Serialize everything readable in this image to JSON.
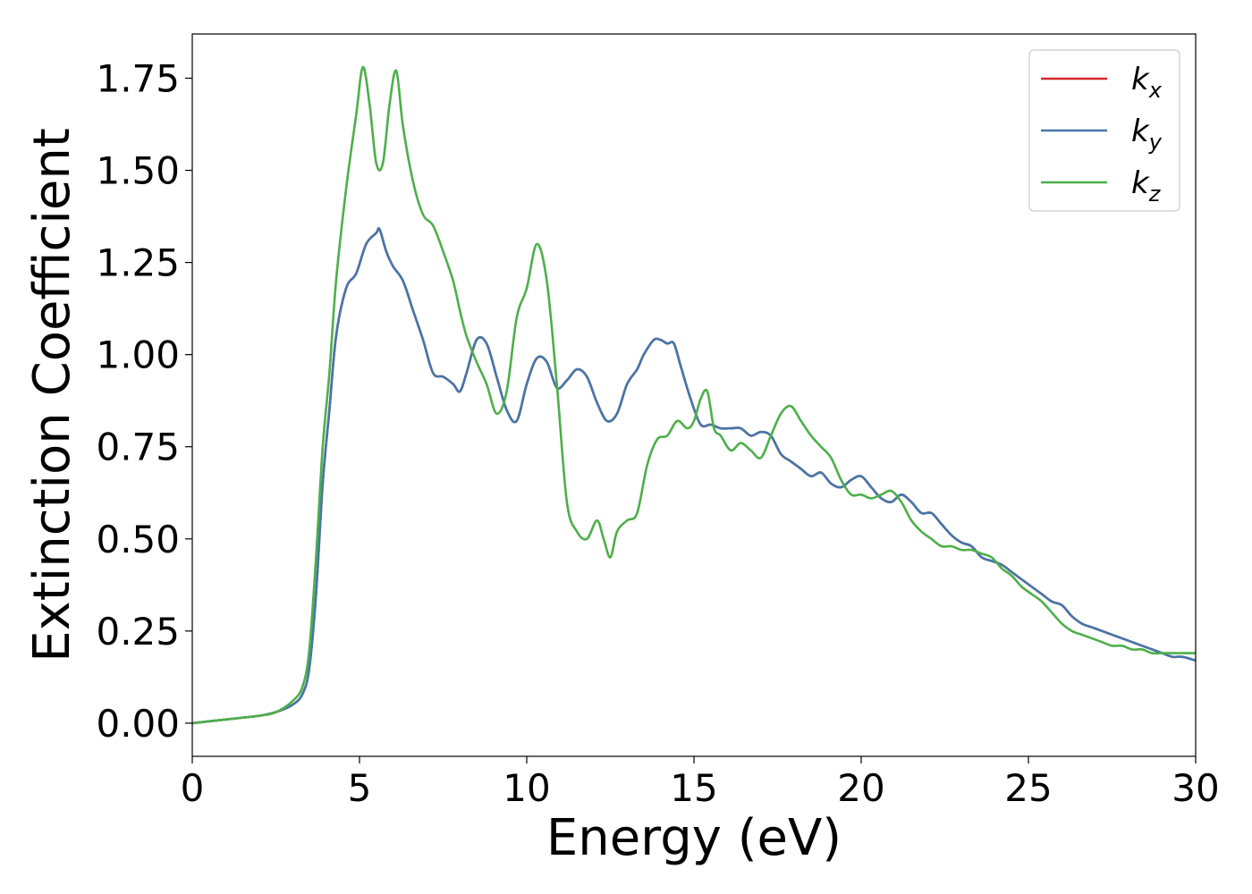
{
  "chart_data": {
    "type": "line",
    "xlabel": "Energy (eV)",
    "ylabel": "Extinction Coefficient",
    "xlim": [
      0,
      30
    ],
    "ylim": [
      -0.09,
      1.87
    ],
    "xticks": [
      0,
      5,
      10,
      15,
      20,
      25,
      30
    ],
    "xtick_labels": [
      "0",
      "5",
      "10",
      "15",
      "20",
      "25",
      "30"
    ],
    "yticks": [
      0.0,
      0.25,
      0.5,
      0.75,
      1.0,
      1.25,
      1.5,
      1.75
    ],
    "ytick_labels": [
      "0.00",
      "0.25",
      "0.50",
      "0.75",
      "1.00",
      "1.25",
      "1.50",
      "1.75"
    ],
    "grid": false,
    "legend_position": "top-right",
    "series": [
      {
        "name": "k_x",
        "label_base": "k",
        "label_sub": "x",
        "color": "#d62728",
        "x": [
          0,
          1,
          2,
          2.5,
          3,
          3.3,
          3.5,
          3.7,
          3.9,
          4.1,
          4.3,
          4.6,
          4.9,
          5.2,
          5.5,
          5.6,
          5.8,
          6.0,
          6.3,
          6.6,
          6.9,
          7.2,
          7.5,
          7.8,
          8.0,
          8.2,
          8.5,
          8.8,
          9.1,
          9.4,
          9.7,
          10.0,
          10.3,
          10.6,
          10.9,
          11.2,
          11.5,
          11.8,
          12.1,
          12.4,
          12.7,
          13.0,
          13.3,
          13.5,
          13.8,
          14.0,
          14.2,
          14.4,
          14.6,
          14.9,
          15.2,
          15.5,
          15.8,
          16.1,
          16.4,
          16.7,
          17.0,
          17.3,
          17.6,
          17.9,
          18.2,
          18.5,
          18.8,
          19.1,
          19.4,
          19.7,
          20.0,
          20.3,
          20.6,
          20.9,
          21.2,
          21.5,
          21.8,
          22.1,
          22.4,
          22.7,
          23.0,
          23.3,
          23.6,
          23.9,
          24.2,
          24.5,
          24.8,
          25.1,
          25.4,
          25.7,
          26.0,
          26.3,
          26.6,
          26.9,
          27.2,
          27.5,
          27.8,
          28.1,
          28.4,
          28.7,
          29.0,
          29.3,
          29.6,
          30.0
        ],
        "y": [
          0.0,
          0.01,
          0.02,
          0.03,
          0.05,
          0.08,
          0.15,
          0.35,
          0.65,
          0.85,
          1.05,
          1.18,
          1.22,
          1.3,
          1.33,
          1.34,
          1.28,
          1.24,
          1.2,
          1.12,
          1.04,
          0.95,
          0.94,
          0.92,
          0.9,
          0.95,
          1.04,
          1.03,
          0.94,
          0.85,
          0.82,
          0.92,
          0.99,
          0.98,
          0.91,
          0.93,
          0.96,
          0.94,
          0.87,
          0.82,
          0.84,
          0.92,
          0.96,
          1.0,
          1.04,
          1.04,
          1.03,
          1.03,
          0.97,
          0.88,
          0.81,
          0.81,
          0.8,
          0.8,
          0.8,
          0.78,
          0.79,
          0.78,
          0.73,
          0.71,
          0.69,
          0.67,
          0.68,
          0.65,
          0.64,
          0.66,
          0.67,
          0.64,
          0.61,
          0.6,
          0.62,
          0.6,
          0.57,
          0.57,
          0.54,
          0.51,
          0.49,
          0.48,
          0.45,
          0.44,
          0.43,
          0.41,
          0.39,
          0.37,
          0.35,
          0.33,
          0.32,
          0.29,
          0.27,
          0.26,
          0.25,
          0.24,
          0.23,
          0.22,
          0.21,
          0.2,
          0.19,
          0.18,
          0.18,
          0.17
        ]
      },
      {
        "name": "k_y",
        "label_base": "k",
        "label_sub": "y",
        "color": "#4477aa",
        "x": [
          0,
          1,
          2,
          2.5,
          3,
          3.3,
          3.5,
          3.7,
          3.9,
          4.1,
          4.3,
          4.6,
          4.9,
          5.2,
          5.5,
          5.6,
          5.8,
          6.0,
          6.3,
          6.6,
          6.9,
          7.2,
          7.5,
          7.8,
          8.0,
          8.2,
          8.5,
          8.8,
          9.1,
          9.4,
          9.7,
          10.0,
          10.3,
          10.6,
          10.9,
          11.2,
          11.5,
          11.8,
          12.1,
          12.4,
          12.7,
          13.0,
          13.3,
          13.5,
          13.8,
          14.0,
          14.2,
          14.4,
          14.6,
          14.9,
          15.2,
          15.5,
          15.8,
          16.1,
          16.4,
          16.7,
          17.0,
          17.3,
          17.6,
          17.9,
          18.2,
          18.5,
          18.8,
          19.1,
          19.4,
          19.7,
          20.0,
          20.3,
          20.6,
          20.9,
          21.2,
          21.5,
          21.8,
          22.1,
          22.4,
          22.7,
          23.0,
          23.3,
          23.6,
          23.9,
          24.2,
          24.5,
          24.8,
          25.1,
          25.4,
          25.7,
          26.0,
          26.3,
          26.6,
          26.9,
          27.2,
          27.5,
          27.8,
          28.1,
          28.4,
          28.7,
          29.0,
          29.3,
          29.6,
          30.0
        ],
        "y": [
          0.0,
          0.01,
          0.02,
          0.03,
          0.05,
          0.08,
          0.15,
          0.35,
          0.65,
          0.85,
          1.05,
          1.18,
          1.22,
          1.3,
          1.33,
          1.34,
          1.28,
          1.24,
          1.2,
          1.12,
          1.04,
          0.95,
          0.94,
          0.92,
          0.9,
          0.95,
          1.04,
          1.03,
          0.94,
          0.85,
          0.82,
          0.92,
          0.99,
          0.98,
          0.91,
          0.93,
          0.96,
          0.94,
          0.87,
          0.82,
          0.84,
          0.92,
          0.96,
          1.0,
          1.04,
          1.04,
          1.03,
          1.03,
          0.97,
          0.88,
          0.81,
          0.81,
          0.8,
          0.8,
          0.8,
          0.78,
          0.79,
          0.78,
          0.73,
          0.71,
          0.69,
          0.67,
          0.68,
          0.65,
          0.64,
          0.66,
          0.67,
          0.64,
          0.61,
          0.6,
          0.62,
          0.6,
          0.57,
          0.57,
          0.54,
          0.51,
          0.49,
          0.48,
          0.45,
          0.44,
          0.43,
          0.41,
          0.39,
          0.37,
          0.35,
          0.33,
          0.32,
          0.29,
          0.27,
          0.26,
          0.25,
          0.24,
          0.23,
          0.22,
          0.21,
          0.2,
          0.19,
          0.18,
          0.18,
          0.17
        ]
      },
      {
        "name": "k_z",
        "label_base": "k",
        "label_sub": "z",
        "color": "#4daf4a",
        "x": [
          0,
          1,
          2,
          2.5,
          3,
          3.3,
          3.5,
          3.7,
          3.9,
          4.1,
          4.3,
          4.6,
          4.9,
          5.1,
          5.3,
          5.5,
          5.7,
          5.9,
          6.1,
          6.3,
          6.6,
          6.9,
          7.2,
          7.5,
          7.8,
          8.0,
          8.2,
          8.5,
          8.8,
          9.1,
          9.4,
          9.7,
          10.0,
          10.3,
          10.6,
          10.9,
          11.2,
          11.5,
          11.8,
          12.1,
          12.3,
          12.5,
          12.7,
          13.0,
          13.3,
          13.6,
          13.9,
          14.2,
          14.5,
          14.8,
          15.0,
          15.2,
          15.4,
          15.6,
          15.8,
          16.1,
          16.4,
          16.7,
          17.0,
          17.3,
          17.6,
          17.9,
          18.2,
          18.5,
          18.8,
          19.1,
          19.4,
          19.7,
          20.0,
          20.3,
          20.6,
          20.9,
          21.2,
          21.5,
          21.8,
          22.1,
          22.4,
          22.7,
          23.0,
          23.3,
          23.6,
          23.9,
          24.2,
          24.5,
          24.8,
          25.1,
          25.4,
          25.7,
          26.0,
          26.3,
          26.6,
          26.9,
          27.2,
          27.5,
          27.8,
          28.1,
          28.4,
          28.7,
          29.0,
          29.3,
          29.6,
          30.0
        ],
        "y": [
          0.0,
          0.01,
          0.02,
          0.03,
          0.06,
          0.1,
          0.2,
          0.45,
          0.75,
          0.95,
          1.2,
          1.45,
          1.65,
          1.78,
          1.68,
          1.52,
          1.52,
          1.68,
          1.77,
          1.62,
          1.47,
          1.38,
          1.35,
          1.28,
          1.2,
          1.12,
          1.05,
          0.98,
          0.92,
          0.84,
          0.9,
          1.1,
          1.18,
          1.3,
          1.2,
          0.92,
          0.6,
          0.52,
          0.5,
          0.55,
          0.5,
          0.45,
          0.52,
          0.55,
          0.57,
          0.7,
          0.77,
          0.78,
          0.82,
          0.8,
          0.82,
          0.88,
          0.9,
          0.8,
          0.78,
          0.74,
          0.76,
          0.74,
          0.72,
          0.78,
          0.84,
          0.86,
          0.82,
          0.78,
          0.75,
          0.72,
          0.66,
          0.62,
          0.62,
          0.61,
          0.62,
          0.63,
          0.6,
          0.55,
          0.52,
          0.5,
          0.48,
          0.48,
          0.47,
          0.47,
          0.46,
          0.45,
          0.42,
          0.4,
          0.37,
          0.35,
          0.33,
          0.3,
          0.27,
          0.25,
          0.24,
          0.23,
          0.22,
          0.21,
          0.21,
          0.2,
          0.2,
          0.19,
          0.19,
          0.19,
          0.19,
          0.19
        ]
      }
    ]
  }
}
